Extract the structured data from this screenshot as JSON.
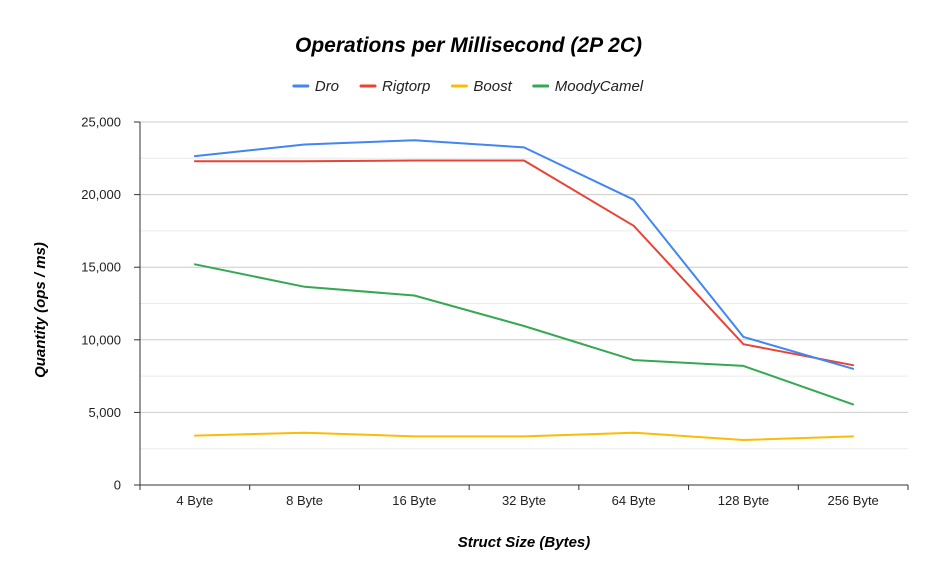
{
  "chart_data": {
    "type": "line",
    "title": "Operations per Millisecond (2P 2C)",
    "xlabel": "Struct Size (Bytes)",
    "ylabel": "Quantity (ops / ms)",
    "categories": [
      "4 Byte",
      "8 Byte",
      "16 Byte",
      "32 Byte",
      "64 Byte",
      "128 Byte",
      "256 Byte"
    ],
    "ylim": [
      0,
      25000
    ],
    "y_ticks": [
      0,
      5000,
      10000,
      15000,
      20000,
      25000
    ],
    "y_tick_labels": [
      "0",
      "5,000",
      "10,000",
      "15,000",
      "20,000",
      "25,000"
    ],
    "grid": true,
    "legend_position": "top",
    "series": [
      {
        "name": "Dro",
        "color": "#4285f4",
        "values": [
          22650,
          23450,
          23750,
          23250,
          19650,
          10200,
          8000
        ]
      },
      {
        "name": "Rigtorp",
        "color": "#ea4335",
        "values": [
          22300,
          22300,
          22350,
          22350,
          17850,
          9700,
          8250
        ]
      },
      {
        "name": "Boost",
        "color": "#fbbc04",
        "values": [
          3400,
          3600,
          3350,
          3350,
          3600,
          3100,
          3350
        ]
      },
      {
        "name": "MoodyCamel",
        "color": "#34a853",
        "values": [
          15200,
          13650,
          13050,
          10950,
          8600,
          8200,
          5550
        ]
      }
    ]
  }
}
